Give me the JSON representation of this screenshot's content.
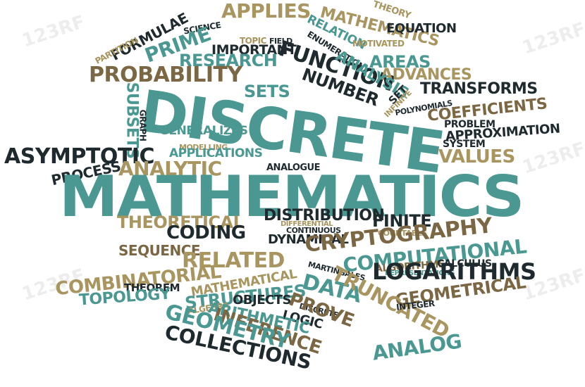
{
  "words": {
    "applies": "APPLIES",
    "theory": "THEORY",
    "science": "SCIENCE",
    "formulae": "FORMULAE",
    "partition": "PARTITION",
    "mathematics_top": "MATHEMATICS",
    "equation": "EQUATION",
    "relation": "RELATION",
    "topic": "TOPIC",
    "field": "FIELD",
    "prime": "PRIME",
    "motivated": "MOTIVATED",
    "important": "IMPORTANT",
    "enumeration": "ENUMERATION",
    "research": "RESEARCH",
    "areas": "AREAS",
    "probability": "PROBABILITY",
    "function": "FUNCTION",
    "advances": "ADVANCES",
    "analysis": "ANALYSIS",
    "number": "NUMBER",
    "sets": "SETS",
    "subsets": "SUBSETS",
    "transforms": "TRANSFORMS",
    "set": "SET",
    "infinite": "INFINITE",
    "discrete": "DISCRETE",
    "polynomials": "POLYNOMIALS",
    "coefficients": "COEFFICIENTS",
    "graph": "GRAPH",
    "problem": "PROBLEM",
    "generalizes": "GENERALIZES",
    "approximation": "APPROXIMATION",
    "asymptotic": "ASYMPTOTIC",
    "modelling": "MODELLING",
    "system": "SYSTEM",
    "applications": "APPLICATIONS",
    "values": "VALUES",
    "process": "PROCESS",
    "analytic": "ANALYTIC",
    "analogue": "ANALOGUE",
    "mathematics_main": "MATHEMATICS",
    "theoretical": "THEORETICAL",
    "distribution": "DISTRIBUTION",
    "finite": "FINITE",
    "differential": "DIFFERENTIAL",
    "coding": "CODING",
    "continuous": "CONTINUOUS",
    "countable": "COUNTABLE",
    "dynamical": "DYNAMICAL",
    "cryptography": "CRYPTOGRAPHY",
    "sequence": "SEQUENCE",
    "computational": "COMPUTATIONAL",
    "related": "RELATED",
    "algorithms": "ALGORITHMS",
    "calculus": "CALCULUS",
    "martingales": "MARTINGALES",
    "representations": "REPRESENTATIONS",
    "combinatorial": "COMBINATORIAL",
    "logarithms": "LOGARITHMS",
    "theorem": "THEOREM",
    "mathematical": "MATHEMATICAL",
    "data": "DATA",
    "geometrical": "GEOMETRICAL",
    "topology": "TOPOLOGY",
    "structures": "STRUCTURES",
    "truncated": "TRUNCATED",
    "integer": "INTEGER",
    "algebra": "ALGEBRA",
    "objects": "OBJECTS",
    "discrete_small": "DISCRETE",
    "prove": "PROVE",
    "logic": "LOGIC",
    "arithmetic": "ARITHMETIC",
    "inference": "INFERENCE",
    "geometry": "GEOMETRY",
    "analog": "ANALOG",
    "collections": "COLLECTIONS"
  },
  "watermark": "123RF",
  "colors": {
    "teal": "#4a9891",
    "tan": "#a8955f",
    "brown": "#7b6743",
    "dark": "#1f2a2f"
  }
}
